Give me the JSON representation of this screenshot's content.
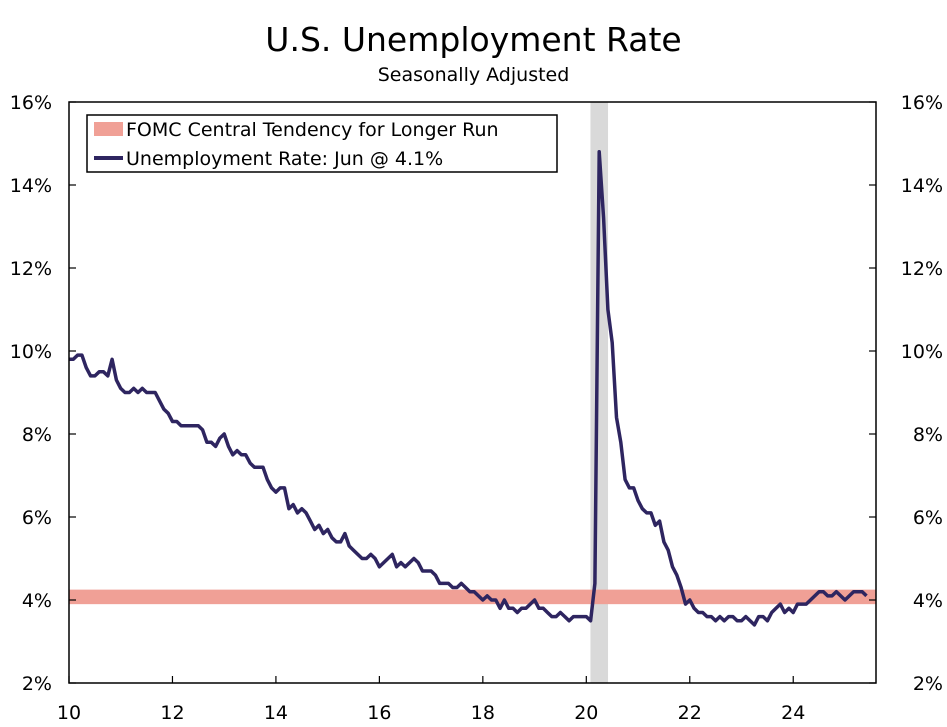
{
  "chart_data": {
    "type": "line",
    "title": "U.S. Unemployment Rate",
    "subtitle": "Seasonally Adjusted",
    "xlabel": "",
    "ylabel": "",
    "xlim": [
      2010.0,
      2025.6
    ],
    "ylim": [
      2,
      16
    ],
    "x_ticks": [
      2010,
      2012,
      2014,
      2016,
      2018,
      2020,
      2022,
      2024
    ],
    "x_tick_labels": [
      "10",
      "12",
      "14",
      "16",
      "18",
      "20",
      "22",
      "24"
    ],
    "y_ticks": [
      2,
      4,
      6,
      8,
      10,
      12,
      14,
      16
    ],
    "y_tick_labels": [
      "2%",
      "4%",
      "6%",
      "8%",
      "10%",
      "12%",
      "14%",
      "16%"
    ],
    "grid": false,
    "legend_position": "top-left",
    "recession_band": {
      "start": 2020.08,
      "end": 2020.42,
      "color": "#d9d9d9"
    },
    "central_tendency": {
      "name": "FOMC Central Tendency for Longer Run",
      "low": 3.9,
      "high": 4.25,
      "color": "#f0a096"
    },
    "series": [
      {
        "name": "Unemployment Rate: Jun @ 4.1%",
        "color": "#2e2560",
        "start": 2010.0,
        "step": 0.0833333,
        "values": [
          9.8,
          9.8,
          9.9,
          9.9,
          9.6,
          9.4,
          9.4,
          9.5,
          9.5,
          9.4,
          9.8,
          9.3,
          9.1,
          9.0,
          9.0,
          9.1,
          9.0,
          9.1,
          9.0,
          9.0,
          9.0,
          8.8,
          8.6,
          8.5,
          8.3,
          8.3,
          8.2,
          8.2,
          8.2,
          8.2,
          8.2,
          8.1,
          7.8,
          7.8,
          7.7,
          7.9,
          8.0,
          7.7,
          7.5,
          7.6,
          7.5,
          7.5,
          7.3,
          7.2,
          7.2,
          7.2,
          6.9,
          6.7,
          6.6,
          6.7,
          6.7,
          6.2,
          6.3,
          6.1,
          6.2,
          6.1,
          5.9,
          5.7,
          5.8,
          5.6,
          5.7,
          5.5,
          5.4,
          5.4,
          5.6,
          5.3,
          5.2,
          5.1,
          5.0,
          5.0,
          5.1,
          5.0,
          4.8,
          4.9,
          5.0,
          5.1,
          4.8,
          4.9,
          4.8,
          4.9,
          5.0,
          4.9,
          4.7,
          4.7,
          4.7,
          4.6,
          4.4,
          4.4,
          4.4,
          4.3,
          4.3,
          4.4,
          4.3,
          4.2,
          4.2,
          4.1,
          4.0,
          4.1,
          4.0,
          4.0,
          3.8,
          4.0,
          3.8,
          3.8,
          3.7,
          3.8,
          3.8,
          3.9,
          4.0,
          3.8,
          3.8,
          3.7,
          3.6,
          3.6,
          3.7,
          3.6,
          3.5,
          3.6,
          3.6,
          3.6,
          3.6,
          3.5,
          4.4,
          14.8,
          13.2,
          11.0,
          10.2,
          8.4,
          7.8,
          6.9,
          6.7,
          6.7,
          6.4,
          6.2,
          6.1,
          6.1,
          5.8,
          5.9,
          5.4,
          5.2,
          4.8,
          4.6,
          4.3,
          3.9,
          4.0,
          3.8,
          3.7,
          3.7,
          3.6,
          3.6,
          3.5,
          3.6,
          3.5,
          3.6,
          3.6,
          3.5,
          3.5,
          3.6,
          3.5,
          3.4,
          3.6,
          3.6,
          3.5,
          3.7,
          3.8,
          3.9,
          3.7,
          3.8,
          3.7,
          3.9,
          3.9,
          3.9,
          4.0,
          4.1,
          4.2,
          4.2,
          4.1,
          4.1,
          4.2,
          4.1,
          4.0,
          4.1,
          4.2,
          4.2,
          4.2,
          4.1
        ]
      }
    ]
  }
}
